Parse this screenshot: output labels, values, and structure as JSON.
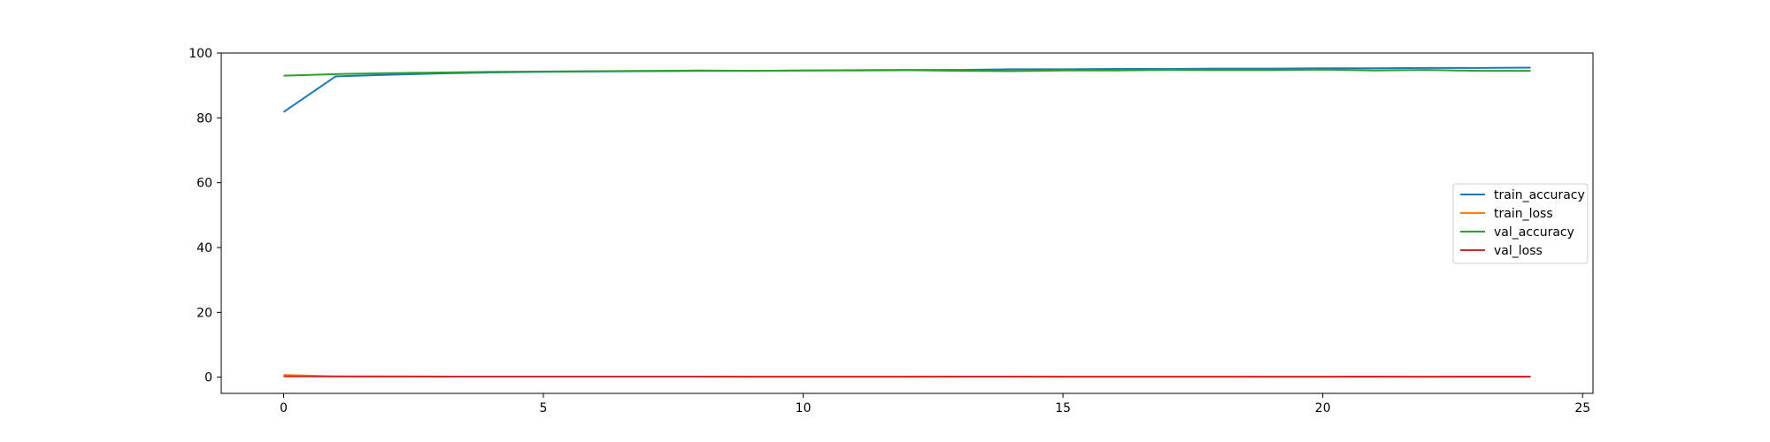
{
  "chart_data": {
    "type": "line",
    "title": "",
    "xlabel": "",
    "ylabel": "",
    "xlim": [
      -1.2,
      25.2
    ],
    "ylim": [
      -5,
      100
    ],
    "grid": false,
    "legend_placement": "center-right",
    "x": [
      0,
      1,
      2,
      3,
      4,
      5,
      6,
      7,
      8,
      9,
      10,
      11,
      12,
      13,
      14,
      15,
      16,
      17,
      18,
      19,
      20,
      21,
      22,
      23,
      24
    ],
    "x_ticks": [
      0,
      5,
      10,
      15,
      20,
      25
    ],
    "y_ticks": [
      0,
      20,
      40,
      60,
      80,
      100
    ],
    "series": [
      {
        "name": "train_accuracy",
        "color": "#1f77b4",
        "values": [
          81.8,
          92.8,
          93.3,
          93.7,
          94.0,
          94.2,
          94.3,
          94.4,
          94.5,
          94.5,
          94.6,
          94.7,
          94.8,
          94.8,
          95.0,
          95.0,
          95.1,
          95.1,
          95.2,
          95.2,
          95.3,
          95.3,
          95.4,
          95.4,
          95.5
        ]
      },
      {
        "name": "train_loss",
        "color": "#ff7f0e",
        "values": [
          0.7,
          0.25,
          0.21,
          0.2,
          0.19,
          0.18,
          0.18,
          0.17,
          0.17,
          0.16,
          0.16,
          0.16,
          0.15,
          0.15,
          0.15,
          0.14,
          0.14,
          0.14,
          0.14,
          0.13,
          0.13,
          0.13,
          0.13,
          0.12,
          0.12
        ]
      },
      {
        "name": "val_accuracy",
        "color": "#2ca02c",
        "values": [
          93.0,
          93.5,
          93.8,
          94.0,
          94.2,
          94.3,
          94.4,
          94.5,
          94.6,
          94.5,
          94.6,
          94.6,
          94.7,
          94.5,
          94.4,
          94.6,
          94.6,
          94.8,
          94.7,
          94.7,
          94.9,
          94.6,
          94.8,
          94.5,
          94.5
        ]
      },
      {
        "name": "val_loss",
        "color": "#d62728",
        "values": [
          0.25,
          0.21,
          0.2,
          0.19,
          0.18,
          0.18,
          0.17,
          0.17,
          0.17,
          0.16,
          0.16,
          0.16,
          0.16,
          0.17,
          0.17,
          0.16,
          0.16,
          0.16,
          0.16,
          0.16,
          0.16,
          0.17,
          0.16,
          0.17,
          0.17
        ]
      }
    ]
  }
}
